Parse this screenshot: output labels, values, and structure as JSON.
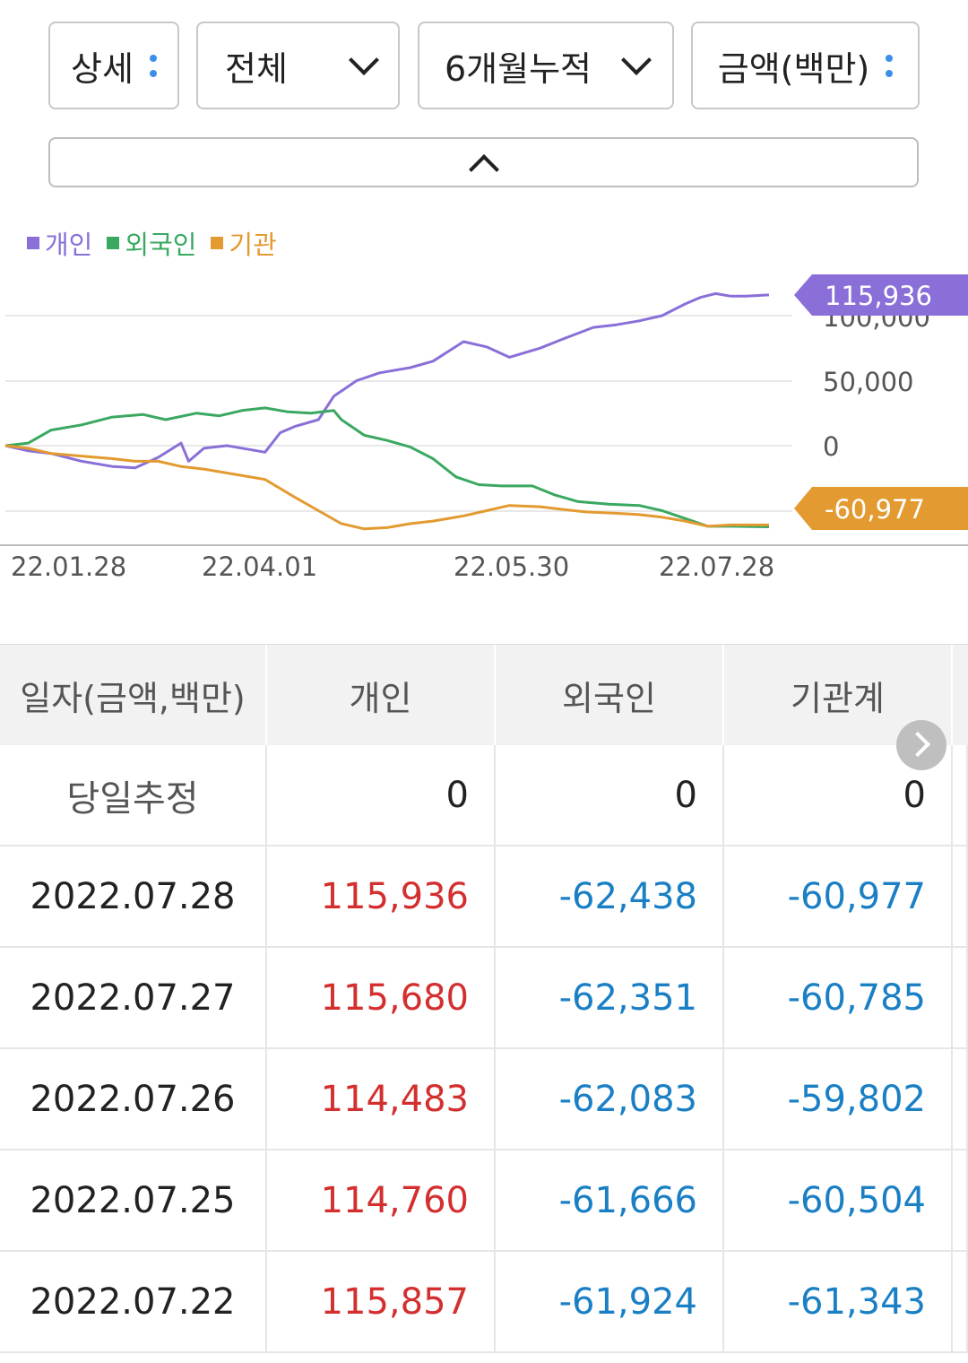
{
  "controls": {
    "detail_label": "상세",
    "scope_label": "전체",
    "period_label": "6개월누적",
    "unit_label": "금액(백만)"
  },
  "legend": [
    {
      "label": "개인",
      "color": "#8a6fd8"
    },
    {
      "label": "외국인",
      "color": "#3aa860"
    },
    {
      "label": "기관",
      "color": "#e39a30"
    }
  ],
  "chart_data": {
    "type": "line",
    "x_tick_labels": [
      "22.01.28",
      "22.04.01",
      "22.05.30",
      "22.07.28"
    ],
    "y_tick_labels": [
      "100,000",
      "50,000",
      "0"
    ],
    "ylim": [
      -60977,
      115936
    ],
    "series": [
      {
        "name": "개인",
        "color": "#8a6fd8",
        "end_label": "115,936",
        "points": [
          [
            0,
            0
          ],
          [
            0.03,
            -4000
          ],
          [
            0.06,
            -6000
          ],
          [
            0.1,
            -12000
          ],
          [
            0.14,
            -16000
          ],
          [
            0.17,
            -17000
          ],
          [
            0.2,
            -9000
          ],
          [
            0.23,
            2000
          ],
          [
            0.24,
            -12000
          ],
          [
            0.26,
            -2000
          ],
          [
            0.29,
            0
          ],
          [
            0.32,
            -3000
          ],
          [
            0.34,
            -5000
          ],
          [
            0.36,
            10000
          ],
          [
            0.38,
            15000
          ],
          [
            0.41,
            20000
          ],
          [
            0.43,
            38000
          ],
          [
            0.46,
            50000
          ],
          [
            0.49,
            56000
          ],
          [
            0.53,
            60000
          ],
          [
            0.56,
            65000
          ],
          [
            0.6,
            80000
          ],
          [
            0.63,
            76000
          ],
          [
            0.66,
            68000
          ],
          [
            0.7,
            75000
          ],
          [
            0.73,
            82000
          ],
          [
            0.77,
            91000
          ],
          [
            0.8,
            93000
          ],
          [
            0.83,
            96000
          ],
          [
            0.86,
            100000
          ],
          [
            0.89,
            109000
          ],
          [
            0.91,
            114000
          ],
          [
            0.93,
            117000
          ],
          [
            0.95,
            115000
          ],
          [
            0.97,
            115000
          ],
          [
            1.0,
            115936
          ]
        ]
      },
      {
        "name": "외국인",
        "color": "#3aa860",
        "end_label": "",
        "points": [
          [
            0,
            0
          ],
          [
            0.03,
            2000
          ],
          [
            0.06,
            12000
          ],
          [
            0.1,
            16000
          ],
          [
            0.14,
            22000
          ],
          [
            0.18,
            24000
          ],
          [
            0.21,
            20000
          ],
          [
            0.25,
            25000
          ],
          [
            0.28,
            23000
          ],
          [
            0.31,
            27000
          ],
          [
            0.34,
            29000
          ],
          [
            0.37,
            26000
          ],
          [
            0.4,
            25000
          ],
          [
            0.43,
            27000
          ],
          [
            0.44,
            20000
          ],
          [
            0.47,
            8000
          ],
          [
            0.5,
            4000
          ],
          [
            0.53,
            -1000
          ],
          [
            0.56,
            -10000
          ],
          [
            0.59,
            -24000
          ],
          [
            0.62,
            -30000
          ],
          [
            0.65,
            -31000
          ],
          [
            0.69,
            -31000
          ],
          [
            0.72,
            -38000
          ],
          [
            0.75,
            -43000
          ],
          [
            0.79,
            -45000
          ],
          [
            0.83,
            -46000
          ],
          [
            0.86,
            -50000
          ],
          [
            0.89,
            -56000
          ],
          [
            0.92,
            -62000
          ],
          [
            0.95,
            -62000
          ],
          [
            1.0,
            -62438
          ]
        ]
      },
      {
        "name": "기관",
        "color": "#e39a30",
        "end_label": "-60,977",
        "points": [
          [
            0,
            0
          ],
          [
            0.03,
            -2000
          ],
          [
            0.06,
            -6000
          ],
          [
            0.1,
            -8000
          ],
          [
            0.14,
            -10000
          ],
          [
            0.17,
            -12000
          ],
          [
            0.2,
            -12000
          ],
          [
            0.23,
            -16000
          ],
          [
            0.26,
            -18000
          ],
          [
            0.3,
            -22000
          ],
          [
            0.34,
            -26000
          ],
          [
            0.38,
            -40000
          ],
          [
            0.41,
            -50000
          ],
          [
            0.44,
            -60000
          ],
          [
            0.47,
            -64000
          ],
          [
            0.5,
            -63000
          ],
          [
            0.53,
            -60000
          ],
          [
            0.56,
            -58000
          ],
          [
            0.6,
            -54000
          ],
          [
            0.63,
            -50000
          ],
          [
            0.66,
            -46000
          ],
          [
            0.7,
            -47000
          ],
          [
            0.73,
            -49000
          ],
          [
            0.76,
            -51000
          ],
          [
            0.8,
            -52000
          ],
          [
            0.83,
            -53000
          ],
          [
            0.86,
            -55000
          ],
          [
            0.89,
            -58000
          ],
          [
            0.92,
            -62000
          ],
          [
            0.95,
            -61000
          ],
          [
            1.0,
            -60977
          ]
        ]
      }
    ]
  },
  "table": {
    "headers": [
      "일자(금액,백만)",
      "개인",
      "외국인",
      "기관계"
    ],
    "today": {
      "label": "당일추정",
      "values": [
        "0",
        "0",
        "0"
      ]
    },
    "rows": [
      {
        "date": "2022.07.28",
        "individual": "115,936",
        "foreign": "-62,438",
        "institution": "-60,977"
      },
      {
        "date": "2022.07.27",
        "individual": "115,680",
        "foreign": "-62,351",
        "institution": "-60,785"
      },
      {
        "date": "2022.07.26",
        "individual": "114,483",
        "foreign": "-62,083",
        "institution": "-59,802"
      },
      {
        "date": "2022.07.25",
        "individual": "114,760",
        "foreign": "-61,666",
        "institution": "-60,504"
      },
      {
        "date": "2022.07.22",
        "individual": "115,857",
        "foreign": "-61,924",
        "institution": "-61,343"
      }
    ]
  }
}
